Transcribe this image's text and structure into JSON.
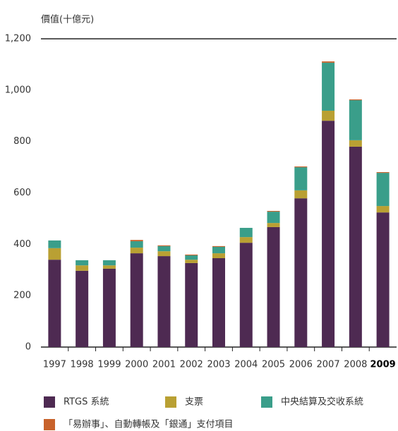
{
  "chart_data": {
    "type": "stacked_bar",
    "y_label": "價值(十億元)",
    "categories": [
      "1997",
      "1998",
      "1999",
      "2000",
      "2001",
      "2002",
      "2003",
      "2004",
      "2005",
      "2006",
      "2007",
      "2008",
      "2009"
    ],
    "series": [
      {
        "name": "RTGS 系統",
        "color": "#4e2a52",
        "values": [
          340,
          297,
          305,
          365,
          354,
          327,
          346,
          406,
          467,
          579,
          881,
          780,
          524
        ]
      },
      {
        "name": "支票",
        "color": "#b9a033",
        "values": [
          45,
          21,
          13,
          22,
          19,
          13,
          19,
          22,
          16,
          31,
          39,
          25,
          25
        ]
      },
      {
        "name": "中央結算及交收系統",
        "color": "#3a9e8a",
        "values": [
          30,
          20,
          20,
          25,
          20,
          17,
          25,
          36,
          44,
          90,
          187,
          156,
          129
        ]
      },
      {
        "name": "「易辦事」、自動轉帳及「銀通」支付項目",
        "color": "#c8622b",
        "values": [
          0,
          0,
          0,
          5,
          3,
          3,
          3,
          0,
          3,
          3,
          5,
          3,
          3
        ]
      }
    ],
    "ylim": [
      0,
      1200
    ],
    "yticks": [
      0,
      200,
      400,
      600,
      800,
      {
        "value": 1000,
        "label": "1,000"
      },
      {
        "value": 1200,
        "label": "1,200"
      }
    ]
  }
}
